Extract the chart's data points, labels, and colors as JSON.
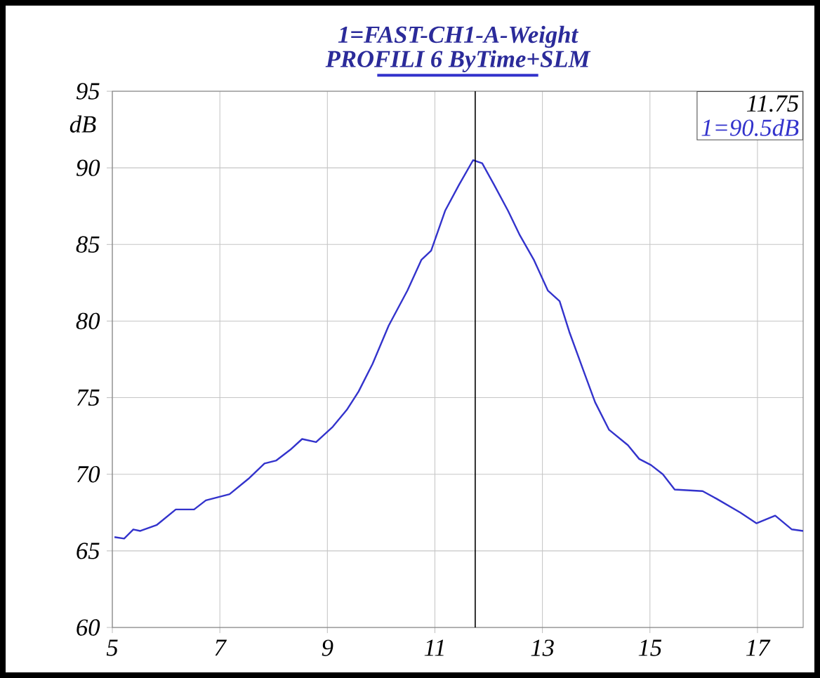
{
  "chart_data": {
    "type": "line",
    "title": "1=FAST-CH1-A-Weight",
    "ylabel": "dB",
    "xlim": [
      5,
      17.85
    ],
    "ylim": [
      60,
      95
    ],
    "xticks": [
      5,
      7,
      9,
      11,
      13,
      15,
      17
    ],
    "yticks": [
      60,
      65,
      70,
      75,
      80,
      85,
      90,
      95
    ],
    "grid": true,
    "legend": "top",
    "marker": "none",
    "line_style": "solid",
    "ref_lines": [
      {
        "axis": "x",
        "value": 11.75,
        "color": "#000000"
      }
    ],
    "annotations": [
      "11.75",
      "1=90.5dB"
    ],
    "series": [
      {
        "name": "PROFILI 6 ByTime+SLM",
        "color": "#3333cc",
        "x": [
          5.04,
          5.22,
          5.39,
          5.52,
          5.83,
          6.18,
          6.52,
          6.74,
          7.18,
          7.53,
          7.83,
          8.05,
          8.31,
          8.53,
          8.79,
          9.1,
          9.36,
          9.58,
          9.84,
          10.14,
          10.49,
          10.75,
          10.93,
          11.19,
          11.45,
          11.71,
          11.88,
          12.1,
          12.36,
          12.58,
          12.84,
          13.1,
          13.32,
          13.5,
          13.76,
          13.98,
          14.24,
          14.59,
          14.8,
          15.02,
          15.24,
          15.46,
          15.98,
          16.24,
          16.68,
          16.98,
          17.33,
          17.64,
          17.85
        ],
        "values": [
          65.9,
          65.8,
          66.4,
          66.3,
          66.7,
          67.7,
          67.7,
          68.3,
          68.7,
          69.7,
          70.7,
          70.9,
          71.6,
          72.3,
          72.1,
          73.1,
          74.2,
          75.4,
          77.2,
          79.7,
          82.0,
          84.0,
          84.6,
          87.2,
          88.9,
          90.5,
          90.3,
          88.9,
          87.2,
          85.6,
          84.0,
          82.0,
          81.3,
          79.3,
          76.8,
          74.7,
          72.9,
          71.9,
          71.0,
          70.6,
          70.0,
          69.0,
          68.9,
          68.4,
          67.5,
          66.8,
          67.3,
          66.4,
          66.3
        ]
      }
    ]
  }
}
